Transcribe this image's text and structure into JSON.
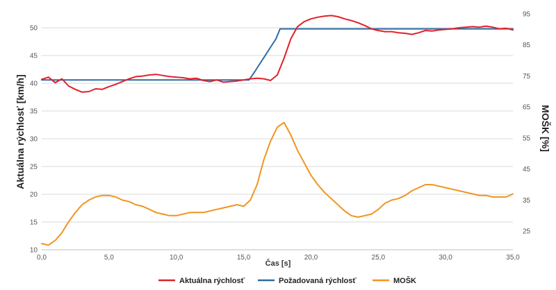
{
  "chart_data": {
    "type": "line",
    "x_title": "Čas [s]",
    "y_left_title": "Aktuálna rýchlosť [km/h]",
    "y_right_title": "MOŠK [%]",
    "x_range": [
      0,
      35
    ],
    "y_left_range": [
      10,
      52.5
    ],
    "y_right_range": [
      19,
      95
    ],
    "x_ticks": [
      "0,0",
      "5,0",
      "10,0",
      "15,0",
      "20,0",
      "25,0",
      "30,0",
      "35,0"
    ],
    "y_left_ticks": [
      "10",
      "15",
      "20",
      "25",
      "30",
      "35",
      "40",
      "45",
      "50"
    ],
    "y_right_ticks": [
      "25",
      "35",
      "45",
      "55",
      "65",
      "75",
      "85",
      "95"
    ],
    "grid": true,
    "legend_position": "bottom",
    "series": [
      {
        "name": "Aktuálna rýchlosť",
        "axis": "left",
        "color": "#e0202a",
        "x": [
          0,
          0.5,
          1,
          1.5,
          2,
          2.5,
          3,
          3.5,
          4,
          4.5,
          5,
          5.5,
          6,
          6.5,
          7,
          7.5,
          8,
          8.5,
          9,
          9.5,
          10,
          10.5,
          11,
          11.5,
          12,
          12.5,
          13,
          13.5,
          14,
          14.5,
          15,
          15.5,
          16,
          16.5,
          17,
          17.5,
          18,
          18.5,
          19,
          19.5,
          20,
          20.5,
          21,
          21.5,
          22,
          22.5,
          23,
          23.5,
          24,
          24.5,
          25,
          25.5,
          26,
          26.5,
          27,
          27.5,
          28,
          28.5,
          29,
          29.5,
          30,
          30.5,
          31,
          31.5,
          32,
          32.5,
          33,
          33.5,
          34,
          34.5,
          35
        ],
        "values": [
          40.7,
          41.1,
          40.1,
          40.8,
          39.5,
          38.9,
          38.4,
          38.5,
          39.0,
          38.9,
          39.4,
          39.8,
          40.3,
          40.8,
          41.2,
          41.3,
          41.5,
          41.6,
          41.4,
          41.2,
          41.1,
          41.0,
          40.8,
          40.9,
          40.5,
          40.3,
          40.6,
          40.2,
          40.3,
          40.4,
          40.6,
          40.8,
          40.9,
          40.8,
          40.5,
          41.5,
          44.5,
          48.0,
          50.2,
          51.1,
          51.6,
          51.9,
          52.1,
          52.2,
          52.0,
          51.6,
          51.3,
          50.9,
          50.4,
          49.8,
          49.5,
          49.3,
          49.3,
          49.1,
          49.0,
          48.8,
          49.1,
          49.5,
          49.4,
          49.6,
          49.7,
          49.8,
          50.0,
          50.1,
          50.2,
          50.1,
          50.3,
          50.1,
          49.8,
          49.9,
          49.6
        ]
      },
      {
        "name": "Požadovaná rýchlosť",
        "axis": "left",
        "color": "#2e6aa5",
        "x": [
          0,
          15.4,
          15.8,
          16.2,
          16.6,
          17.0,
          17.4,
          17.7,
          18.0,
          35
        ],
        "values": [
          40.6,
          40.6,
          42.0,
          43.5,
          45.0,
          46.5,
          48.0,
          49.8,
          49.8,
          49.8
        ]
      },
      {
        "name": "MOŠK",
        "axis": "right",
        "color": "#f0941f",
        "x": [
          0,
          0.5,
          1,
          1.5,
          2,
          2.5,
          3,
          3.5,
          4,
          4.5,
          5,
          5.5,
          6,
          6.5,
          7,
          7.5,
          8,
          8.5,
          9,
          9.5,
          10,
          10.5,
          11,
          11.5,
          12,
          12.5,
          13,
          13.5,
          14,
          14.5,
          15,
          15.5,
          16,
          16.5,
          17,
          17.5,
          18,
          18.5,
          19,
          19.5,
          20,
          20.5,
          21,
          21.5,
          22,
          22.5,
          23,
          23.5,
          24,
          24.5,
          25,
          25.5,
          26,
          26.5,
          27,
          27.5,
          28,
          28.5,
          29,
          29.5,
          30,
          30.5,
          31,
          31.5,
          32,
          32.5,
          33,
          33.5,
          34,
          34.5,
          35
        ],
        "values": [
          21.0,
          20.5,
          22.0,
          24.5,
          28.0,
          31.0,
          33.5,
          35.0,
          36.0,
          36.5,
          36.5,
          36.0,
          35.0,
          34.5,
          33.5,
          33.0,
          32.0,
          31.0,
          30.5,
          30.0,
          30.0,
          30.5,
          31.0,
          31.0,
          31.0,
          31.5,
          32.0,
          32.5,
          33.0,
          33.5,
          33.0,
          35.0,
          40.0,
          48.0,
          54.0,
          58.5,
          60.0,
          56.0,
          51.0,
          47.0,
          43.0,
          40.0,
          37.5,
          35.5,
          33.5,
          31.5,
          30.0,
          29.5,
          30.0,
          30.5,
          32.0,
          34.0,
          35.0,
          35.5,
          36.5,
          38.0,
          39.0,
          40.0,
          40.0,
          39.5,
          39.0,
          38.5,
          38.0,
          37.5,
          37.0,
          36.5,
          36.5,
          36.0,
          36.0,
          36.0,
          37.0
        ]
      }
    ]
  }
}
